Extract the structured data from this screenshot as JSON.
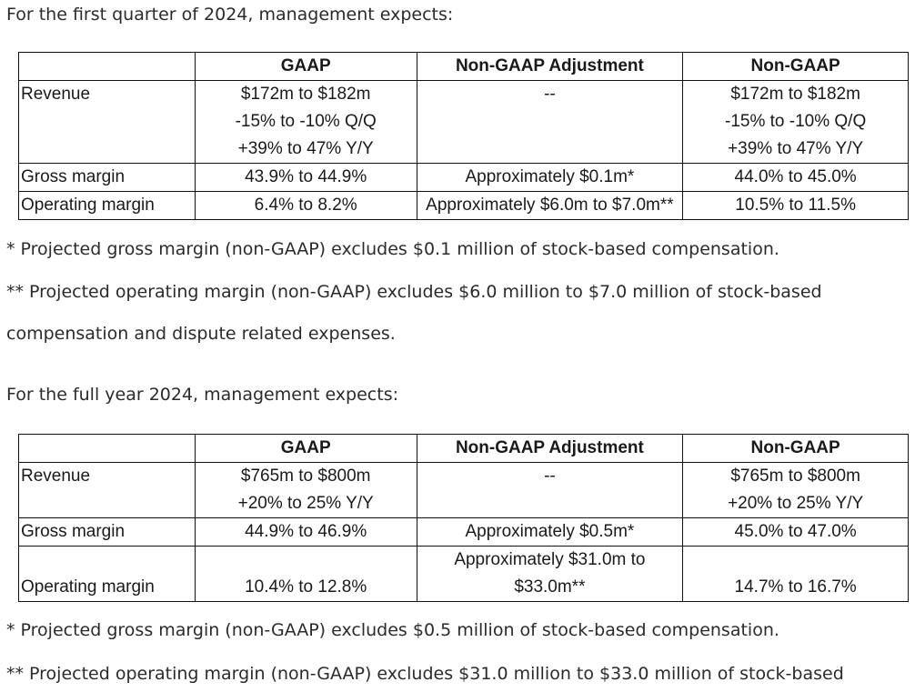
{
  "q1": {
    "intro": "For the first quarter of 2024, management expects:",
    "headers": [
      "",
      "GAAP",
      "Non-GAAP Adjustment",
      "Non-GAAP"
    ],
    "revenue": {
      "label": "Revenue",
      "gaap": [
        "$172m to $182m",
        "-15% to -10% Q/Q",
        "+39% to 47% Y/Y"
      ],
      "adjustment": "--",
      "nongaap": [
        "$172m to $182m",
        "-15% to -10% Q/Q",
        "+39% to 47% Y/Y"
      ]
    },
    "gross_margin": {
      "label": "Gross margin",
      "gaap": "43.9% to 44.9%",
      "adjustment": "Approximately $0.1m*",
      "nongaap": "44.0% to 45.0%"
    },
    "operating_margin": {
      "label": "Operating margin",
      "gaap": "6.4% to 8.2%",
      "adjustment": "Approximately $6.0m to $7.0m**",
      "nongaap": "10.5% to 11.5%"
    },
    "note1": "* Projected gross margin (non-GAAP) excludes $0.1 million of stock-based compensation.",
    "note2_line1": "** Projected operating margin (non-GAAP) excludes $6.0 million to $7.0 million of stock-based",
    "note2_line2": "compensation and dispute related expenses."
  },
  "fy": {
    "intro": "For the full year 2024, management expects:",
    "headers": [
      "",
      "GAAP",
      "Non-GAAP Adjustment",
      "Non-GAAP"
    ],
    "revenue": {
      "label": "Revenue",
      "gaap": [
        "$765m to $800m",
        "+20% to 25% Y/Y"
      ],
      "adjustment": "--",
      "nongaap": [
        "$765m to $800m",
        "+20% to 25% Y/Y"
      ]
    },
    "gross_margin": {
      "label": "Gross margin",
      "gaap": "44.9% to 46.9%",
      "adjustment": "Approximately $0.5m*",
      "nongaap": "45.0% to 47.0%"
    },
    "operating_margin": {
      "label": "Operating margin",
      "gaap": "10.4% to 12.8%",
      "adjustment": [
        "Approximately $31.0m to",
        "$33.0m**"
      ],
      "nongaap": "14.7% to 16.7%"
    },
    "note1": "* Projected gross margin (non-GAAP) excludes $0.5 million of stock-based compensation.",
    "note2_line1": "** Projected operating margin (non-GAAP) excludes $31.0 million to $33.0 million of stock-based"
  }
}
